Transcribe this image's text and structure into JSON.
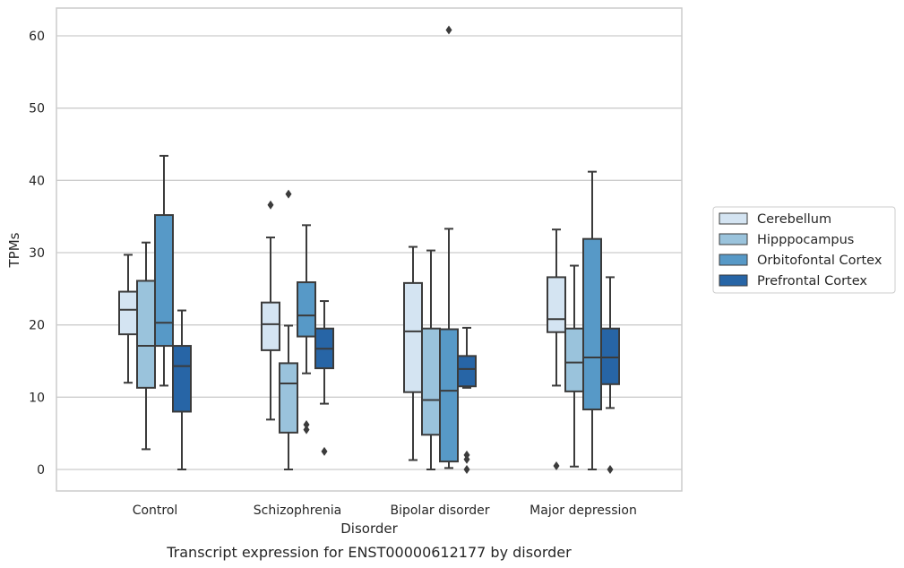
{
  "chart_data": {
    "type": "box",
    "caption": "Transcript expression for ENST00000612177 by disorder",
    "xlabel": "Disorder",
    "ylabel": "TPMs",
    "ylim": [
      -3,
      64
    ],
    "yticks": [
      0,
      10,
      20,
      30,
      40,
      50,
      60
    ],
    "grid": true,
    "legend_position": "right",
    "categories": [
      "Control",
      "Schizophrenia",
      "Bipolar disorder",
      "Major depression"
    ],
    "series": [
      {
        "name": "Cerebellum",
        "color": "#d4e4f2",
        "boxes": [
          {
            "whisker_low": 12,
            "q1": 18.7,
            "median": 22.1,
            "q3": 24.6,
            "whisker_high": 29.7,
            "outliers": []
          },
          {
            "whisker_low": 6.9,
            "q1": 16.5,
            "median": 20.1,
            "q3": 23.1,
            "whisker_high": 32.1,
            "outliers": [
              36.6
            ]
          },
          {
            "whisker_low": 1.3,
            "q1": 10.7,
            "median": 19.1,
            "q3": 25.8,
            "whisker_high": 30.8,
            "outliers": []
          },
          {
            "whisker_low": 11.6,
            "q1": 19.0,
            "median": 20.8,
            "q3": 26.6,
            "whisker_high": 33.2,
            "outliers": [
              0.5
            ]
          }
        ]
      },
      {
        "name": "Hipppocampus",
        "color": "#9ac3dc",
        "boxes": [
          {
            "whisker_low": 2.8,
            "q1": 11.3,
            "median": 17.1,
            "q3": 26.1,
            "whisker_high": 31.4,
            "outliers": []
          },
          {
            "whisker_low": 0.0,
            "q1": 5.1,
            "median": 11.9,
            "q3": 14.7,
            "whisker_high": 19.9,
            "outliers": [
              38.1
            ]
          },
          {
            "whisker_low": 0.0,
            "q1": 4.8,
            "median": 9.6,
            "q3": 19.5,
            "whisker_high": 30.3,
            "outliers": []
          },
          {
            "whisker_low": 0.4,
            "q1": 10.8,
            "median": 14.8,
            "q3": 19.5,
            "whisker_high": 28.2,
            "outliers": []
          }
        ]
      },
      {
        "name": "Orbitofontal Cortex",
        "color": "#5799c7",
        "boxes": [
          {
            "whisker_low": 11.6,
            "q1": 17.1,
            "median": 20.3,
            "q3": 35.2,
            "whisker_high": 43.4,
            "outliers": []
          },
          {
            "whisker_low": 13.3,
            "q1": 18.4,
            "median": 21.3,
            "q3": 25.9,
            "whisker_high": 33.8,
            "outliers": [
              6.2,
              5.5
            ]
          },
          {
            "whisker_low": 0.2,
            "q1": 1.1,
            "median": 10.9,
            "q3": 19.4,
            "whisker_high": 33.3,
            "outliers": [
              60.8
            ]
          },
          {
            "whisker_low": 0.0,
            "q1": 8.3,
            "median": 15.5,
            "q3": 31.9,
            "whisker_high": 41.2,
            "outliers": []
          }
        ]
      },
      {
        "name": "Prefrontal Cortex",
        "color": "#2765a6",
        "boxes": [
          {
            "whisker_low": 0.0,
            "q1": 8.0,
            "median": 14.3,
            "q3": 17.1,
            "whisker_high": 22.0,
            "outliers": []
          },
          {
            "whisker_low": 9.1,
            "q1": 14.0,
            "median": 16.7,
            "q3": 19.5,
            "whisker_high": 23.3,
            "outliers": [
              2.5
            ]
          },
          {
            "whisker_low": 11.3,
            "q1": 11.5,
            "median": 13.9,
            "q3": 15.7,
            "whisker_high": 19.6,
            "outliers": [
              2.0,
              1.4,
              0.0
            ]
          },
          {
            "whisker_low": 8.5,
            "q1": 11.8,
            "median": 15.5,
            "q3": 19.5,
            "whisker_high": 26.6,
            "outliers": [
              0.0
            ]
          }
        ]
      }
    ]
  }
}
